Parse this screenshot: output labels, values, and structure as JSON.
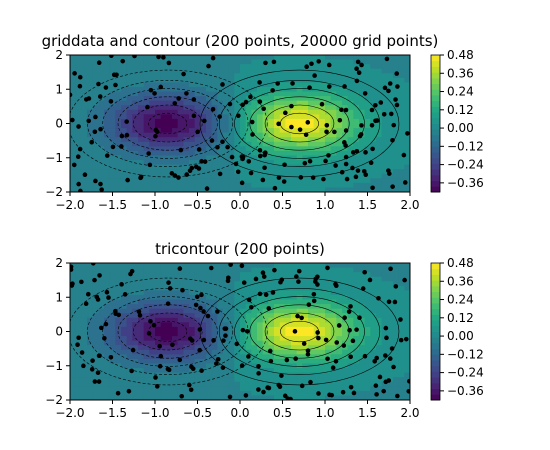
{
  "chart_data": [
    {
      "type": "heatmap",
      "subtype": "filled-contour",
      "title": "griddata and contour (200 points, 20000 grid points)",
      "xlabel": "",
      "ylabel": "",
      "xlim": [
        -2.0,
        2.0
      ],
      "ylim": [
        -2.0,
        2.0
      ],
      "x_ticks": [
        "−2.0",
        "−1.5",
        "−1.0",
        "−0.5",
        "0.0",
        "0.5",
        "1.0",
        "1.5",
        "2.0"
      ],
      "y_ticks": [
        "−2",
        "−1",
        "0",
        "1",
        "2"
      ],
      "colorbar": {
        "colormap": "viridis",
        "range": [
          -0.42,
          0.48
        ],
        "tick_values": [
          -0.36,
          -0.24,
          -0.12,
          0.0,
          0.12,
          0.24,
          0.36,
          0.48
        ],
        "tick_labels": [
          "−0.36",
          "−0.24",
          "−0.12",
          "0.00",
          "0.12",
          "0.24",
          "0.36",
          "0.48"
        ]
      },
      "field": {
        "peaks": [
          {
            "type": "min",
            "x": -0.85,
            "y": 0.0,
            "value": -0.42
          },
          {
            "type": "max",
            "x": 0.7,
            "y": 0.0,
            "value": 0.48
          }
        ]
      },
      "scatter_points": 200,
      "grid_on": false
    },
    {
      "type": "heatmap",
      "subtype": "tricontour",
      "title": "tricontour (200 points)",
      "xlabel": "",
      "ylabel": "",
      "xlim": [
        -2.0,
        2.0
      ],
      "ylim": [
        -2.0,
        2.0
      ],
      "x_ticks": [
        "−2.0",
        "−1.5",
        "−1.0",
        "−0.5",
        "0.0",
        "0.5",
        "1.0",
        "1.5",
        "2.0"
      ],
      "y_ticks": [
        "−2",
        "−1",
        "0",
        "1",
        "2"
      ],
      "colorbar": {
        "colormap": "viridis",
        "range": [
          -0.42,
          0.48
        ],
        "tick_values": [
          -0.36,
          -0.24,
          -0.12,
          0.0,
          0.12,
          0.24,
          0.36,
          0.48
        ],
        "tick_labels": [
          "−0.36",
          "−0.24",
          "−0.12",
          "0.00",
          "0.12",
          "0.24",
          "0.36",
          "0.48"
        ]
      },
      "field": {
        "peaks": [
          {
            "type": "min",
            "x": -0.85,
            "y": 0.0,
            "value": -0.42
          },
          {
            "type": "max",
            "x": 0.7,
            "y": 0.0,
            "value": 0.48
          }
        ]
      },
      "scatter_points": 200,
      "grid_on": false
    }
  ]
}
